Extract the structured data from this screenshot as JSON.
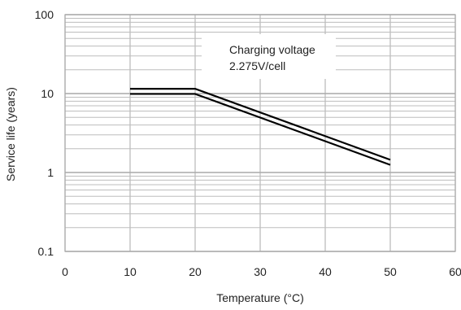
{
  "chart_data": {
    "type": "line",
    "title": "",
    "xlabel": "Temperature (°C)",
    "ylabel": "Service life (years)",
    "x_ticks": [
      "0",
      "10",
      "20",
      "30",
      "40",
      "50",
      "60"
    ],
    "y_ticks": [
      "0.1",
      "1",
      "10",
      "100"
    ],
    "xlim": [
      0,
      60
    ],
    "ylim": [
      0.1,
      100
    ],
    "y_scale": "log",
    "grid": true,
    "series": [
      {
        "x": [
          10,
          20,
          50
        ],
        "y": [
          11.5,
          11.5,
          1.45
        ]
      },
      {
        "x": [
          10,
          20,
          50
        ],
        "y": [
          9.9,
          9.9,
          1.25
        ]
      }
    ],
    "annotation": {
      "line1": "Charging voltage",
      "line2": "2.275V/cell"
    },
    "colors": {
      "grid": "#bdbdbd",
      "major_grid": "#a9a9a9",
      "series": "#000000",
      "text": "#222222"
    }
  }
}
